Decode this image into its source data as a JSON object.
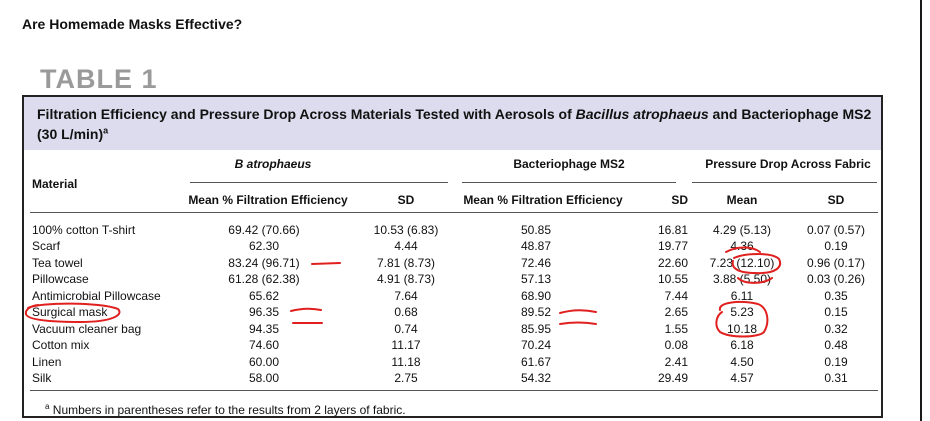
{
  "page_title": "Are Homemade Masks Effective?",
  "table_label": "TABLE 1",
  "caption": {
    "part1": "Filtration Efficiency and Pressure Drop Across Materials Tested with Aerosols of ",
    "italic": "Bacillus atrophaeus",
    "part2": " and Bacteriophage MS2 (30 L/min)",
    "sup": "a"
  },
  "headers": {
    "material": "Material",
    "group_b": "B atrophaeus",
    "group_ms2": "Bacteriophage MS2",
    "group_pd": "Pressure Drop Across Fabric",
    "mean_fe_b": "Mean % Filtration Efficiency",
    "sd_b": "SD",
    "mean_fe_ms2": "Mean % Filtration Efficiency",
    "sd_ms2": "SD",
    "mean_pd": "Mean",
    "sd_pd": "SD"
  },
  "rows": [
    {
      "material": "100% cotton T-shirt",
      "b_mean": "69.42 (70.66)",
      "b_sd": "10.53 (6.83)",
      "ms2_mean": "50.85",
      "ms2_sd": "16.81",
      "pd_mean": "4.29 (5.13)",
      "pd_sd": "0.07 (0.57)"
    },
    {
      "material": "Scarf",
      "b_mean": "62.30",
      "b_sd": "4.44",
      "ms2_mean": "48.87",
      "ms2_sd": "19.77",
      "pd_mean": "4.36",
      "pd_sd": "0.19"
    },
    {
      "material": "Tea towel",
      "b_mean": "83.24 (96.71)",
      "b_sd": "7.81 (8.73)",
      "ms2_mean": "72.46",
      "ms2_sd": "22.60",
      "pd_mean": "7.23 (12.10)",
      "pd_sd": "0.96 (0.17)"
    },
    {
      "material": "Pillowcase",
      "b_mean": "61.28 (62.38)",
      "b_sd": "4.91 (8.73)",
      "ms2_mean": "57.13",
      "ms2_sd": "10.55",
      "pd_mean": "3.88 (5.50)",
      "pd_sd": "0.03 (0.26)"
    },
    {
      "material": "Antimicrobial Pillowcase",
      "b_mean": "65.62",
      "b_sd": "7.64",
      "ms2_mean": "68.90",
      "ms2_sd": "7.44",
      "pd_mean": "6.11",
      "pd_sd": "0.35"
    },
    {
      "material": "Surgical mask",
      "b_mean": "96.35",
      "b_sd": "0.68",
      "ms2_mean": "89.52",
      "ms2_sd": "2.65",
      "pd_mean": "5.23",
      "pd_sd": "0.15"
    },
    {
      "material": "Vacuum cleaner bag",
      "b_mean": "94.35",
      "b_sd": "0.74",
      "ms2_mean": "85.95",
      "ms2_sd": "1.55",
      "pd_mean": "10.18",
      "pd_sd": "0.32"
    },
    {
      "material": "Cotton mix",
      "b_mean": "74.60",
      "b_sd": "11.17",
      "ms2_mean": "70.24",
      "ms2_sd": "0.08",
      "pd_mean": "6.18",
      "pd_sd": "0.48"
    },
    {
      "material": "Linen",
      "b_mean": "60.00",
      "b_sd": "11.18",
      "ms2_mean": "61.67",
      "ms2_sd": "2.41",
      "pd_mean": "4.50",
      "pd_sd": "0.19"
    },
    {
      "material": "Silk",
      "b_mean": "58.00",
      "b_sd": "2.75",
      "ms2_mean": "54.32",
      "ms2_sd": "29.49",
      "pd_mean": "4.57",
      "pd_sd": "0.31"
    }
  ],
  "footnote": {
    "sup": "a",
    "text": " Numbers in parentheses refer to the results from 2 layers of fabric."
  },
  "colors": {
    "caption_band": "#dcdcee",
    "table_label": "#9a9a9a",
    "annotation": "#e0201e"
  }
}
